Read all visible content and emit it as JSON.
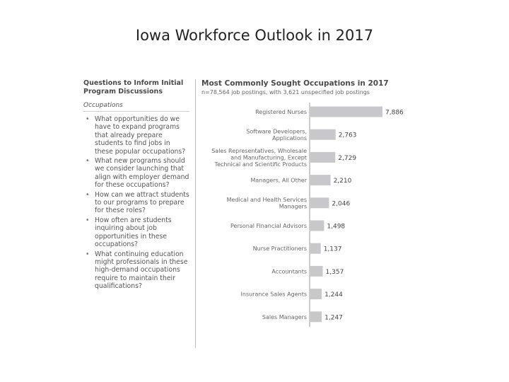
{
  "slide": {
    "title": "Iowa Workforce Outlook in 2017"
  },
  "left_panel": {
    "heading_lines": [
      "Questions to Inform Initial",
      "Program Discussions"
    ],
    "subheading": "Occupations",
    "questions": [
      "What opportunities do we have to expand programs that already prepare students to find jobs in these popular occupations?",
      "What new programs should we consider launching that align with employer demand for these occupations?",
      "How can we attract students to our programs to prepare for these roles?",
      "How often are students inquiring about job opportunities in these occupations?",
      "What continuing education might professionals in these high-demand occupations require to maintain their qualifications?"
    ]
  },
  "chart_data": {
    "type": "bar",
    "orientation": "horizontal",
    "title": "Most Commonly Sought Occupations in 2017",
    "subtitle": "n=78,564 job postings, with 3,621 unspecified job postings",
    "categories": [
      [
        "Registered Nurses"
      ],
      [
        "Software Developers,",
        "Applications"
      ],
      [
        "Sales Representatives, Wholesale",
        "and Manufacturing, Except",
        "Technical and Scientific Products"
      ],
      [
        "Managers, All Other"
      ],
      [
        "Medical and Health Services",
        "Managers"
      ],
      [
        "Personal Financial Advisors"
      ],
      [
        "Nurse Practitioners"
      ],
      [
        "Accountants"
      ],
      [
        "Insurance Sales Agents"
      ],
      [
        "Sales Managers"
      ]
    ],
    "values": [
      7886,
      2763,
      2729,
      2210,
      2046,
      1498,
      1137,
      1357,
      1244,
      1247
    ],
    "value_labels": [
      "7,886",
      "2,763",
      "2,729",
      "2,210",
      "2,046",
      "1,498",
      "1,137",
      "1,357",
      "1,244",
      "1,247"
    ],
    "xlim": [
      0,
      7886
    ],
    "bar_color": "#c8c8cc"
  }
}
